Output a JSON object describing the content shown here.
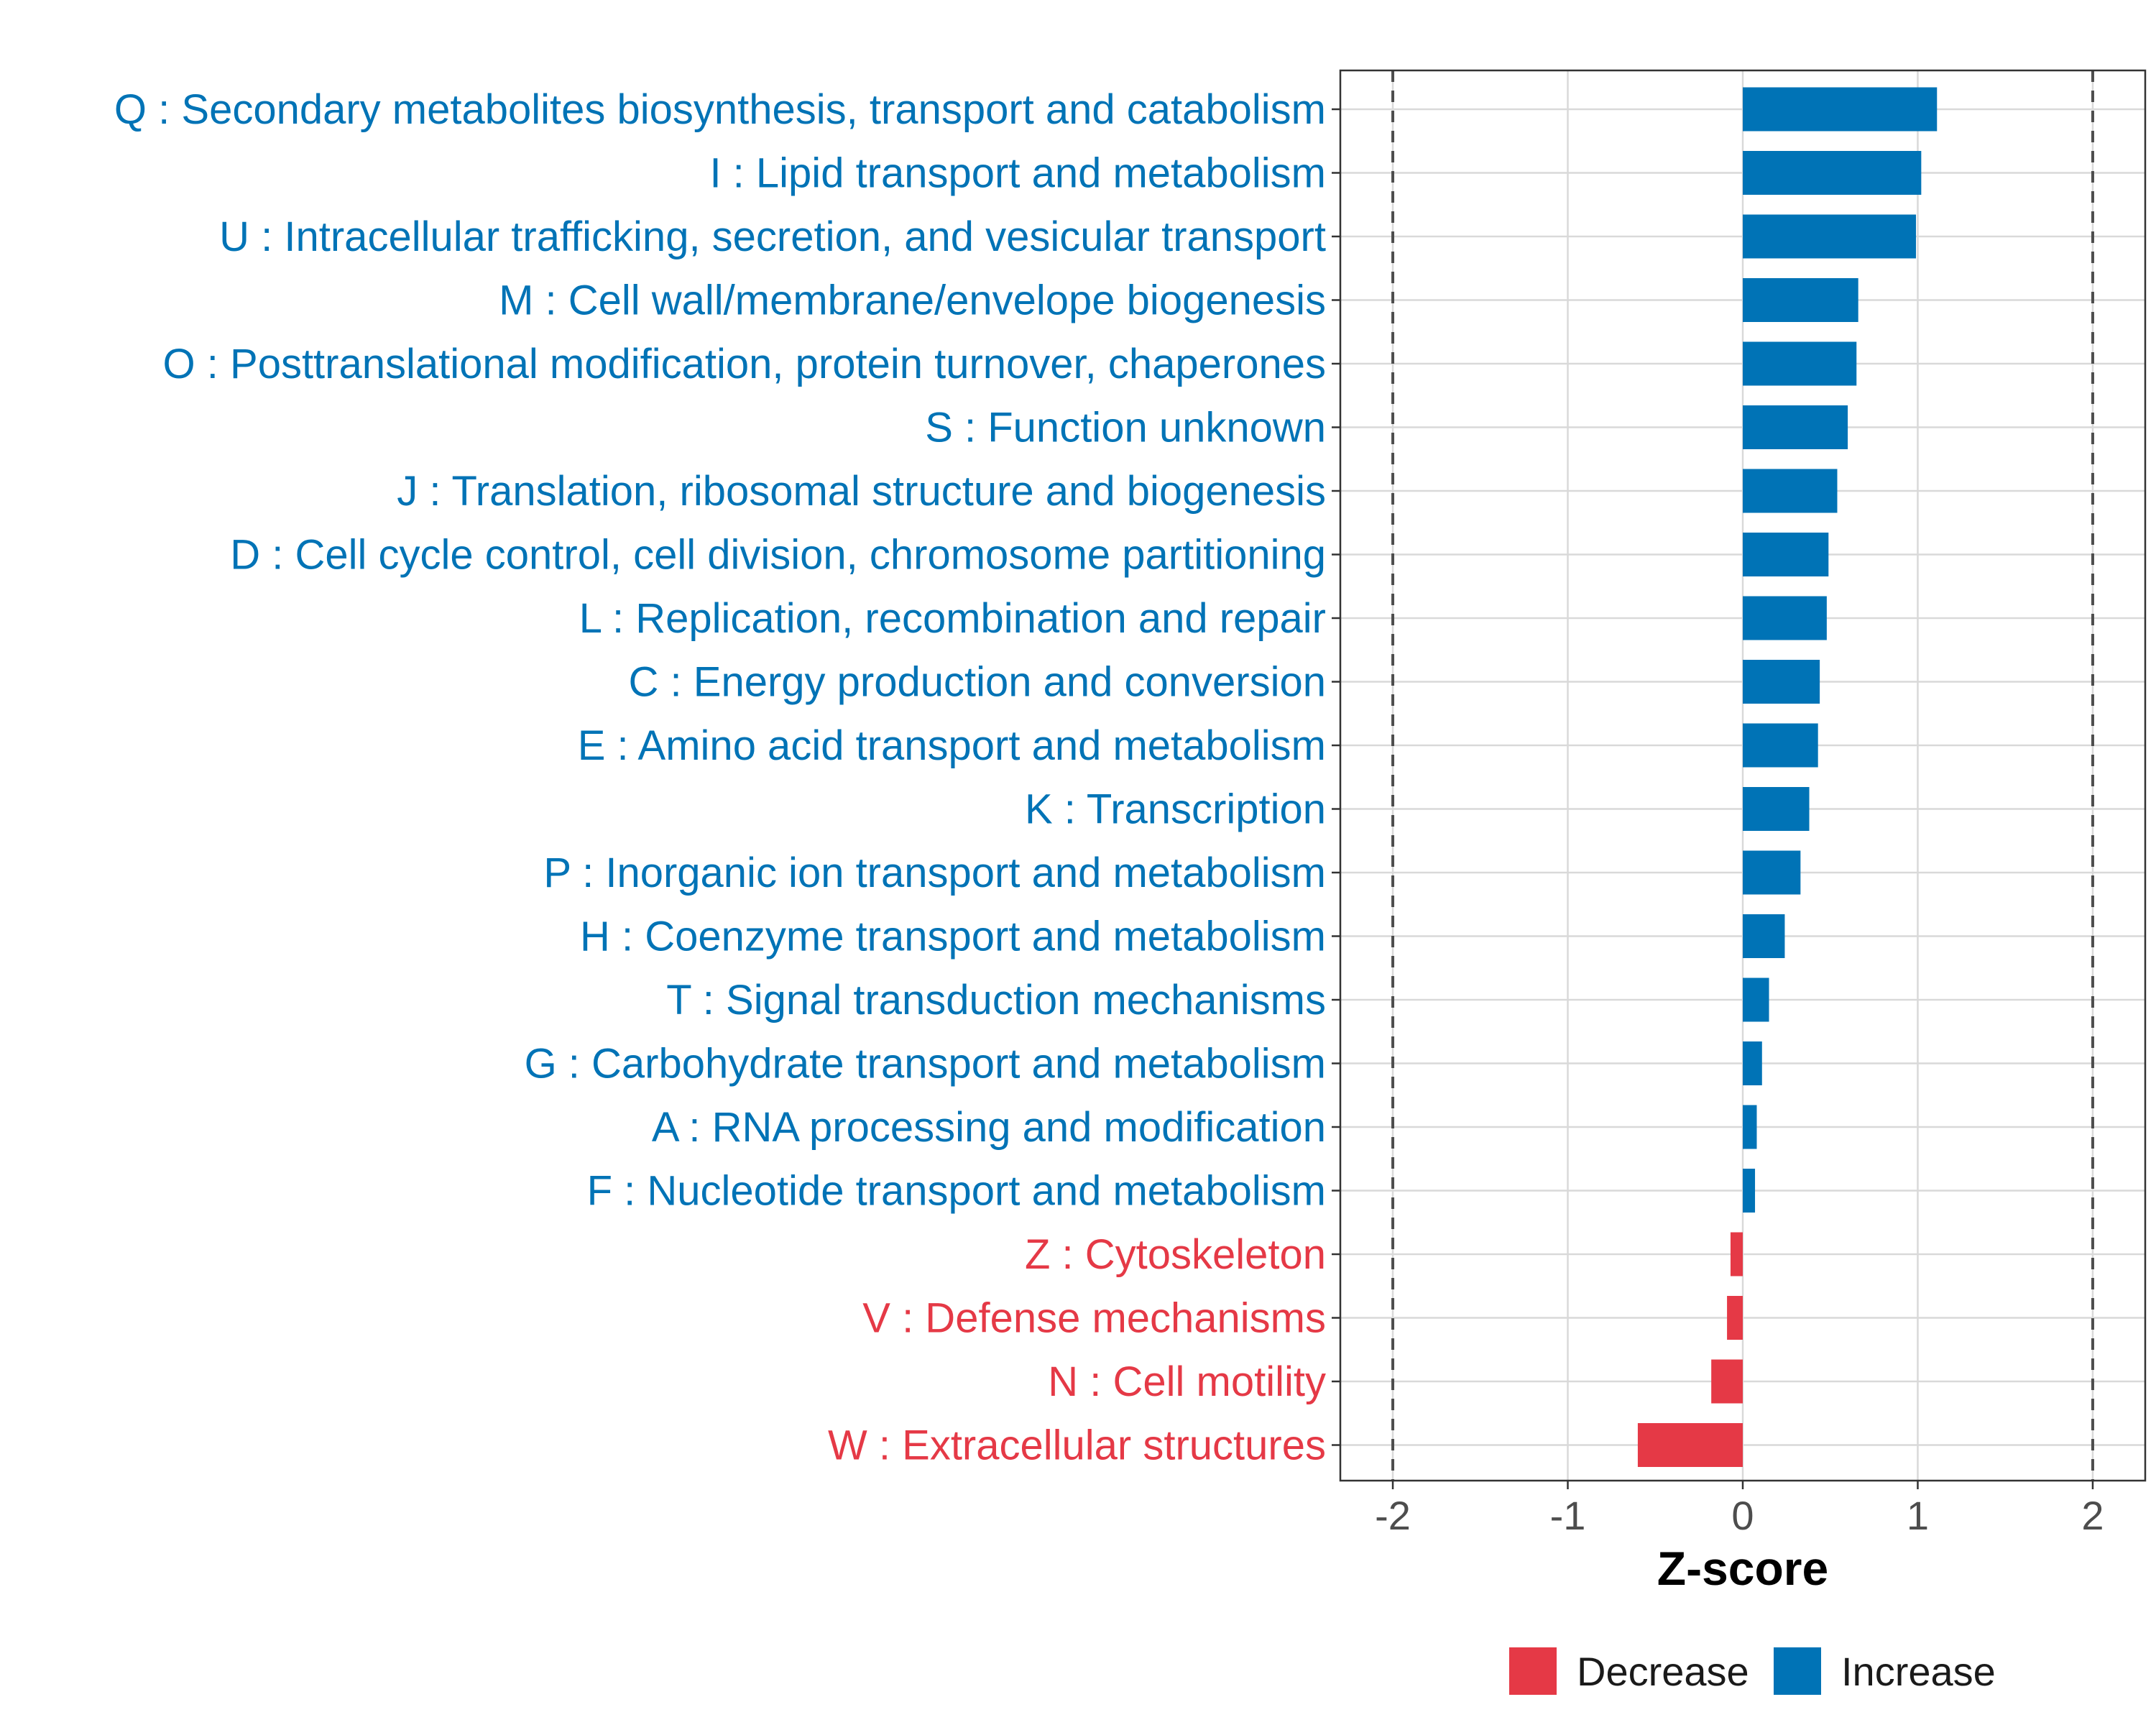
{
  "colors": {
    "increase": "#0073B6",
    "decrease": "#E53946",
    "grid": "#d9d9d9",
    "panel_border": "#333333",
    "threshold_line": "#4d4d4d"
  },
  "chart_data": {
    "type": "bar",
    "orientation": "horizontal",
    "title": "",
    "xlabel": "Z-score",
    "ylabel": "",
    "xlim": [
      -2.3,
      2.3
    ],
    "x_ticks": [
      -2,
      -1,
      0,
      1,
      2
    ],
    "x_tick_labels": [
      "-2",
      "-1",
      "0",
      "1",
      "2"
    ],
    "threshold_lines": [
      -2,
      2
    ],
    "grid": true,
    "legend_position": "bottom",
    "legend": [
      {
        "label": "Decrease",
        "color": "#E53946"
      },
      {
        "label": "Increase",
        "color": "#0073B6"
      }
    ],
    "categories": [
      "Q : Secondary metabolites biosynthesis, transport and catabolism",
      "I : Lipid transport and metabolism",
      "U : Intracellular trafficking, secretion, and vesicular transport",
      "M : Cell wall/membrane/envelope biogenesis",
      "O : Posttranslational modification, protein turnover, chaperones",
      "S : Function unknown",
      "J : Translation, ribosomal structure and biogenesis",
      "D : Cell cycle control, cell division, chromosome partitioning",
      "L : Replication, recombination and repair",
      "C : Energy production and conversion",
      "E : Amino acid transport and metabolism",
      "K : Transcription",
      "P : Inorganic ion transport and metabolism",
      "H : Coenzyme transport and metabolism",
      "T : Signal transduction mechanisms",
      "G : Carbohydrate transport and metabolism",
      "A : RNA processing and modification",
      "F : Nucleotide transport and metabolism",
      "Z : Cytoskeleton",
      "V : Defense mechanisms",
      "N : Cell motility",
      "W : Extracellular structures"
    ],
    "values": [
      1.11,
      1.02,
      0.99,
      0.66,
      0.65,
      0.6,
      0.54,
      0.49,
      0.48,
      0.44,
      0.43,
      0.38,
      0.33,
      0.24,
      0.15,
      0.11,
      0.08,
      0.07,
      -0.07,
      -0.09,
      -0.18,
      -0.6
    ],
    "groups": [
      "Increase",
      "Increase",
      "Increase",
      "Increase",
      "Increase",
      "Increase",
      "Increase",
      "Increase",
      "Increase",
      "Increase",
      "Increase",
      "Increase",
      "Increase",
      "Increase",
      "Increase",
      "Increase",
      "Increase",
      "Increase",
      "Decrease",
      "Decrease",
      "Decrease",
      "Decrease"
    ]
  }
}
